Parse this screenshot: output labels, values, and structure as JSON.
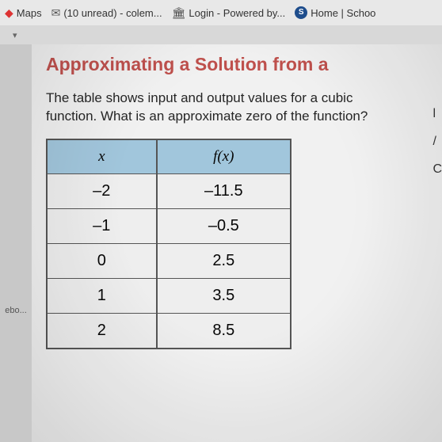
{
  "bookmarks": {
    "maps": "Maps",
    "mail": "(10 unread) - colem...",
    "login": "Login - Powered by...",
    "home": "Home | Schoo"
  },
  "sidebar": {
    "truncated_text": "ebo..."
  },
  "page": {
    "title": "Approximating a Solution from a",
    "question_line1": "The table shows input and output values for a cubic",
    "question_line2": "function. What is an approximate zero of the function?"
  },
  "table": {
    "type": "table",
    "header_x": "x",
    "header_fx": "f(x)",
    "header_bg": "#a8d0e8",
    "border_color": "#555555",
    "cell_bg": "#fbfbfb",
    "font_size": 20,
    "columns": [
      "x",
      "f(x)"
    ],
    "rows": [
      {
        "x": "–2",
        "fx": "–11.5"
      },
      {
        "x": "–1",
        "fx": "–0.5"
      },
      {
        "x": "0",
        "fx": "2.5"
      },
      {
        "x": "1",
        "fx": "3.5"
      },
      {
        "x": "2",
        "fx": "8.5"
      }
    ]
  },
  "right_edge": {
    "char1": "l",
    "char2": "/",
    "char3": "C"
  },
  "colors": {
    "title_color": "#c8504c",
    "background": "#ffffff",
    "body_bg": "#b8b8b8"
  }
}
